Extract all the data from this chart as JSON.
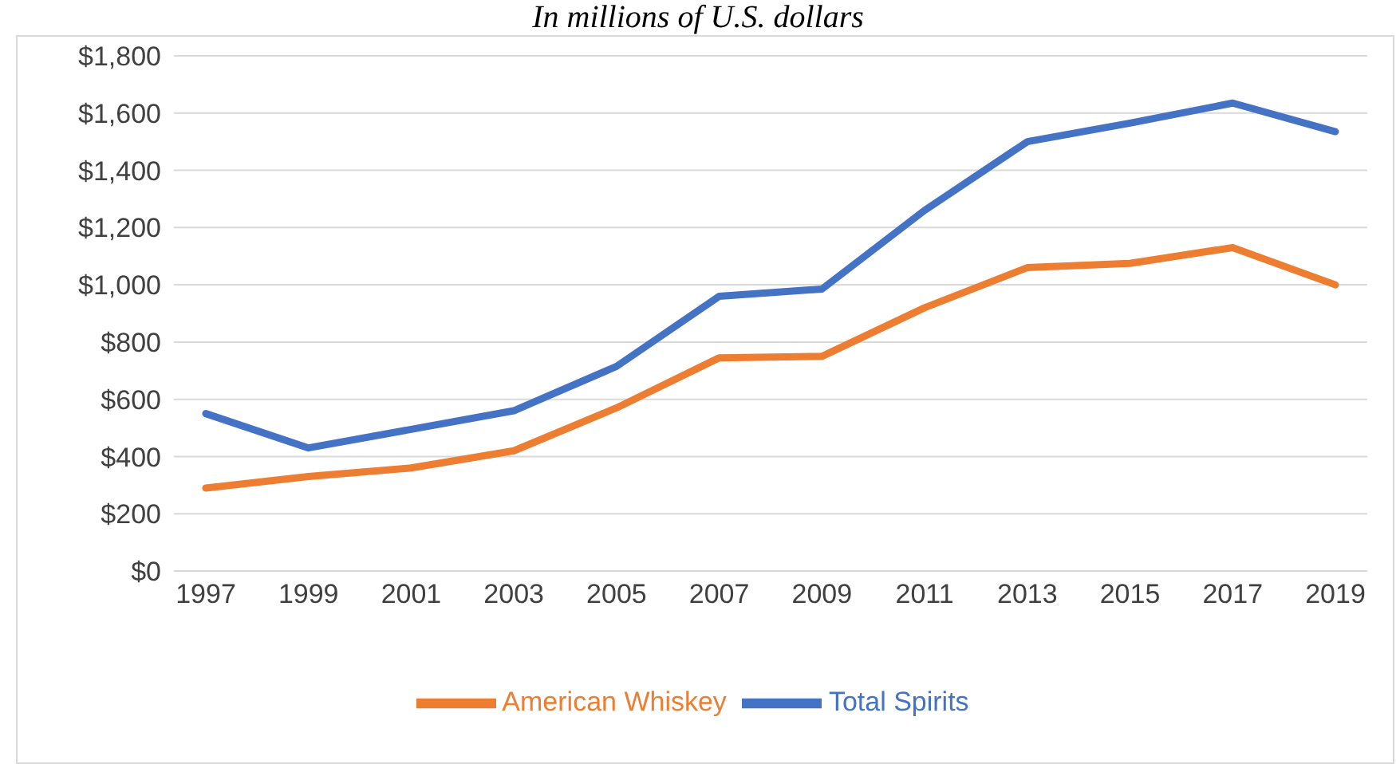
{
  "chart_data": {
    "type": "line",
    "subtitle": "In millions of U.S. dollars",
    "categories": [
      "1997",
      "1999",
      "2001",
      "2003",
      "2005",
      "2007",
      "2009",
      "2011",
      "2013",
      "2015",
      "2017",
      "2019"
    ],
    "series": [
      {
        "name": "Total Spirits",
        "color": "#4472c4",
        "values": [
          550,
          430,
          495,
          560,
          715,
          960,
          985,
          1260,
          1500,
          1565,
          1635,
          1535
        ]
      },
      {
        "name": "American Whiskey",
        "color": "#ed7d31",
        "values": [
          290,
          330,
          360,
          420,
          570,
          745,
          750,
          920,
          1060,
          1075,
          1130,
          1000
        ]
      }
    ],
    "ylim": [
      0,
      1800
    ],
    "yticks": [
      {
        "value": 0,
        "label": "$0"
      },
      {
        "value": 200,
        "label": "$200"
      },
      {
        "value": 400,
        "label": "$400"
      },
      {
        "value": 600,
        "label": "$600"
      },
      {
        "value": 800,
        "label": "$800"
      },
      {
        "value": 1000,
        "label": "$1,000"
      },
      {
        "value": 1200,
        "label": "$1,200"
      },
      {
        "value": 1400,
        "label": "$1,400"
      },
      {
        "value": 1600,
        "label": "$1,600"
      },
      {
        "value": 1800,
        "label": "$1,800"
      }
    ],
    "grid": "y",
    "legend": "bottom",
    "marker": "none",
    "line_style": "solid"
  }
}
